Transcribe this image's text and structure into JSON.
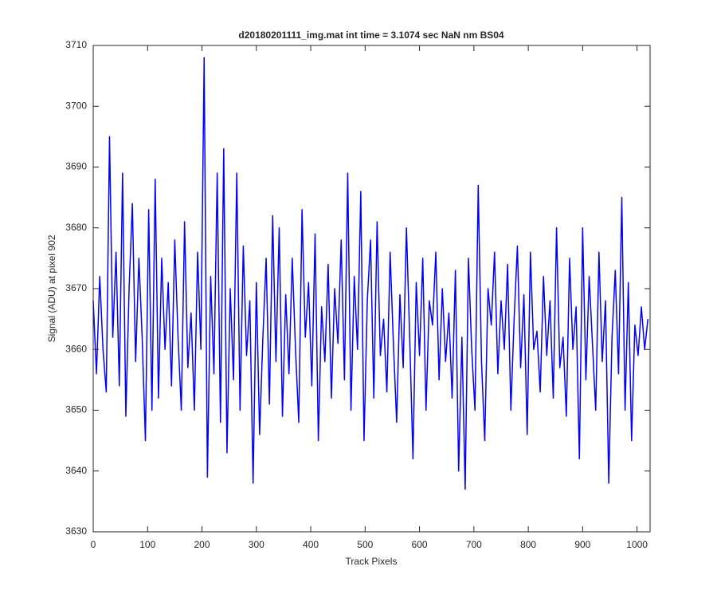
{
  "chart_data": {
    "type": "line",
    "title": "d20180201111_img.mat int time = 3.1074 sec  NaN nm BS04",
    "x_label": "Track Pixels",
    "y_label": "Signal (ADU) at pixel 902",
    "xlim": [
      0,
      1024
    ],
    "ylim": [
      3630,
      3710
    ],
    "xticks": [
      0,
      100,
      200,
      300,
      400,
      500,
      600,
      700,
      800,
      900,
      1000
    ],
    "yticks": [
      3630,
      3640,
      3650,
      3660,
      3670,
      3680,
      3690,
      3700,
      3710
    ],
    "x": [
      0,
      6,
      12,
      18,
      24,
      30,
      36,
      42,
      48,
      54,
      60,
      66,
      72,
      78,
      84,
      90,
      96,
      102,
      108,
      114,
      120,
      126,
      132,
      138,
      144,
      150,
      156,
      162,
      168,
      174,
      180,
      186,
      192,
      198,
      204,
      210,
      216,
      222,
      228,
      234,
      240,
      246,
      252,
      258,
      264,
      270,
      276,
      282,
      288,
      294,
      300,
      306,
      312,
      318,
      324,
      330,
      336,
      342,
      348,
      354,
      360,
      366,
      372,
      378,
      384,
      390,
      396,
      402,
      408,
      414,
      420,
      426,
      432,
      438,
      444,
      450,
      456,
      462,
      468,
      474,
      480,
      486,
      492,
      498,
      504,
      510,
      516,
      522,
      528,
      534,
      540,
      546,
      552,
      558,
      564,
      570,
      576,
      582,
      588,
      594,
      600,
      606,
      612,
      618,
      624,
      630,
      636,
      642,
      648,
      654,
      660,
      666,
      672,
      678,
      684,
      690,
      696,
      702,
      708,
      714,
      720,
      726,
      732,
      738,
      744,
      750,
      756,
      762,
      768,
      774,
      780,
      786,
      792,
      798,
      804,
      810,
      816,
      822,
      828,
      834,
      840,
      846,
      852,
      858,
      864,
      870,
      876,
      882,
      888,
      894,
      900,
      906,
      912,
      918,
      924,
      930,
      936,
      942,
      948,
      954,
      960,
      966,
      972,
      978,
      984,
      990,
      996,
      1002,
      1008,
      1014,
      1020
    ],
    "series": [
      {
        "name": "signal",
        "color": "#0000ff",
        "values": [
          3668,
          3656,
          3672,
          3660,
          3653,
          3695,
          3662,
          3676,
          3654,
          3689,
          3649,
          3670,
          3684,
          3658,
          3675,
          3662,
          3645,
          3683,
          3650,
          3688,
          3652,
          3675,
          3660,
          3671,
          3654,
          3678,
          3662,
          3650,
          3681,
          3657,
          3666,
          3650,
          3676,
          3660,
          3708,
          3639,
          3672,
          3656,
          3689,
          3648,
          3693,
          3643,
          3670,
          3655,
          3689,
          3650,
          3677,
          3659,
          3668,
          3638,
          3671,
          3646,
          3662,
          3675,
          3651,
          3682,
          3658,
          3680,
          3649,
          3669,
          3656,
          3675,
          3660,
          3648,
          3683,
          3662,
          3671,
          3654,
          3679,
          3645,
          3667,
          3658,
          3674,
          3652,
          3670,
          3661,
          3678,
          3655,
          3689,
          3650,
          3672,
          3660,
          3686,
          3645,
          3668,
          3678,
          3652,
          3681,
          3659,
          3665,
          3653,
          3676,
          3661,
          3648,
          3669,
          3657,
          3680,
          3662,
          3642,
          3671,
          3659,
          3675,
          3650,
          3668,
          3664,
          3676,
          3655,
          3670,
          3658,
          3666,
          3652,
          3673,
          3640,
          3662,
          3637,
          3675,
          3660,
          3650,
          3687,
          3658,
          3645,
          3670,
          3664,
          3676,
          3656,
          3668,
          3660,
          3674,
          3650,
          3665,
          3677,
          3657,
          3669,
          3646,
          3676,
          3660,
          3663,
          3653,
          3672,
          3659,
          3668,
          3652,
          3680,
          3657,
          3662,
          3649,
          3675,
          3660,
          3667,
          3642,
          3680,
          3655,
          3672,
          3661,
          3650,
          3676,
          3658,
          3668,
          3638,
          3662,
          3673,
          3656,
          3685,
          3650,
          3671,
          3645,
          3664,
          3659,
          3667,
          3660,
          3665
        ]
      }
    ]
  }
}
